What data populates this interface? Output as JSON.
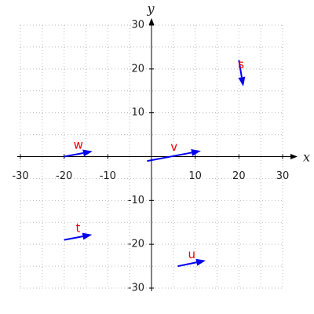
{
  "chart_data": {
    "type": "quiver",
    "x_label": "x",
    "y_label": "y",
    "xlim": [
      -30,
      30
    ],
    "ylim": [
      -30,
      30
    ],
    "xticks": [
      -30,
      -20,
      -10,
      10,
      20,
      30
    ],
    "yticks": [
      -30,
      -20,
      -10,
      10,
      20,
      30
    ],
    "minor_grid": [
      -25,
      -15,
      -5,
      0,
      5,
      15,
      25
    ],
    "grid": true,
    "color": "#0000ee",
    "label_color": "#ee0000",
    "vectors": [
      {
        "name": "w",
        "x": -20,
        "y": 0,
        "u": 6.5,
        "v": 1.2
      },
      {
        "name": "v",
        "x": -1,
        "y": -1,
        "u": 12.3,
        "v": 2.3
      },
      {
        "name": "s",
        "x": 20,
        "y": 22,
        "u": 1,
        "v": -6
      },
      {
        "name": "t",
        "x": -20,
        "y": -19,
        "u": 6.4,
        "v": 1.2
      },
      {
        "name": "u",
        "x": 6,
        "y": -25,
        "u": 6.4,
        "v": 1.3
      }
    ]
  }
}
